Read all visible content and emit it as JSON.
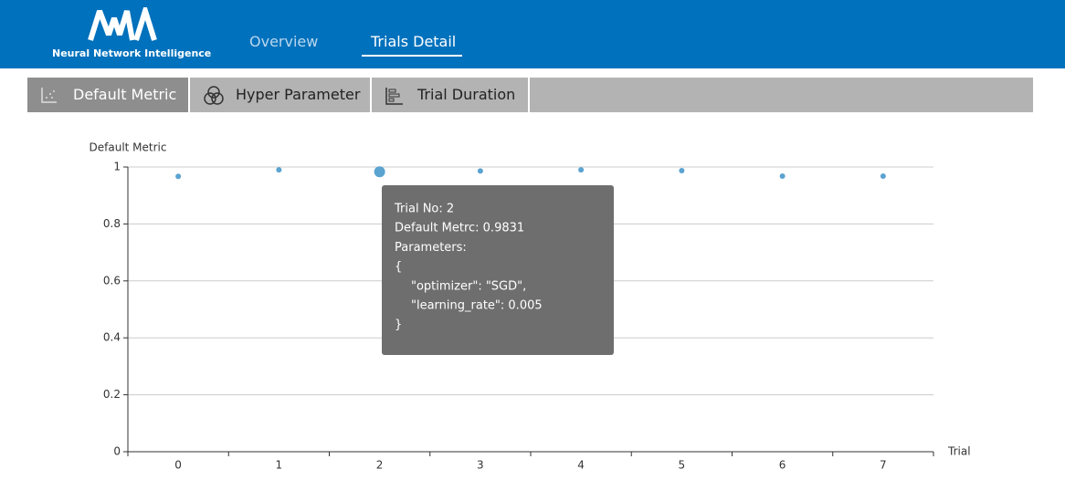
{
  "header": {
    "logo_text": "Neural Network Intelligence",
    "nav": [
      "Overview",
      "Trials Detail"
    ]
  },
  "tabs": [
    "Default Metric",
    "Hyper Parameter",
    "Trial Duration"
  ],
  "chart_data": {
    "type": "scatter",
    "y_label": "Default Metric",
    "x_label": "Trial",
    "categories": [
      "0",
      "1",
      "2",
      "3",
      "4",
      "5",
      "6",
      "7"
    ],
    "values": [
      0.967,
      0.99,
      0.9831,
      0.986,
      0.99,
      0.987,
      0.968,
      0.968
    ],
    "color": "#5ba3d0",
    "ylim": [
      0,
      1
    ],
    "yticks": [
      0,
      0.2,
      0.4,
      0.6,
      0.8,
      1
    ],
    "grid": true,
    "tooltip": [
      "Trial No: 2",
      "Default Metrc: 0.9831",
      "Parameters:",
      "{",
      "\"optimizer\": \"SGD\",",
      "\"learning_rate\": 0.005",
      "}"
    ]
  }
}
